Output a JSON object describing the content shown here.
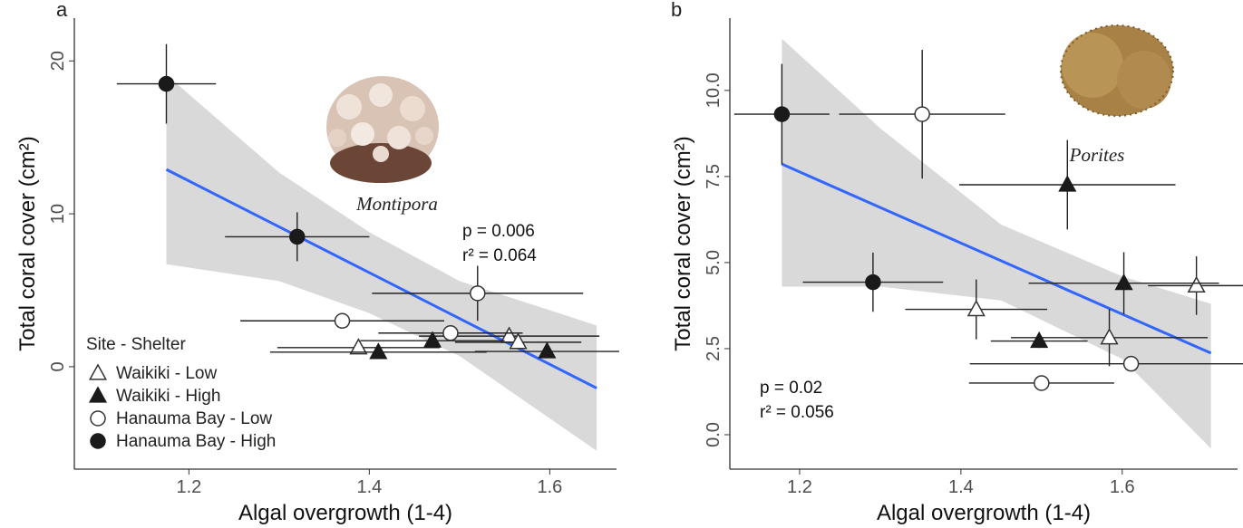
{
  "chart_data": [
    {
      "type": "scatter",
      "panel_label": "a",
      "x_label": "Algal overgrowth (1-4)",
      "y_label": "Total coral cover (cm²)",
      "xlim": [
        1.073,
        1.674
      ],
      "ylim": [
        -6.7,
        22.8
      ],
      "xticks": [
        1.2,
        1.4,
        1.6
      ],
      "yticks": [
        0,
        10,
        20
      ],
      "annotations": [
        "p = 0.006",
        "r² = 0.064"
      ],
      "image_label": "Montipora",
      "legend": true,
      "legend_title": "Site - Shelter",
      "legend_position": "lower left",
      "fit": {
        "color": "#3366ff",
        "band_color": "#d9d9d9",
        "x": [
          1.175,
          1.3,
          1.4,
          1.5,
          1.652
        ],
        "values": [
          12.9,
          9.15,
          6.15,
          3.15,
          -1.4
        ],
        "lower": [
          6.7,
          5.6,
          3.5,
          0.7,
          -5.5
        ],
        "upper": [
          19.1,
          12.7,
          8.8,
          5.6,
          2.7
        ]
      },
      "series": [
        {
          "name": "Waikiki - Low",
          "marker": "triangle",
          "filled": false,
          "color": "#333333",
          "x": [
            1.388,
            1.555,
            1.565
          ],
          "values": [
            1.25,
            2.0,
            1.6
          ],
          "x_err": [
            0.09,
            0.1,
            0.07
          ],
          "y_err": [
            0.2,
            0.3,
            0.3
          ]
        },
        {
          "name": "Waikiki - High",
          "marker": "triangle",
          "filled": true,
          "color": "#1a1a1a",
          "x": [
            1.41,
            1.47,
            1.597
          ],
          "values": [
            0.95,
            1.7,
            1.0
          ],
          "x_err": [
            0.12,
            0.08,
            0.08
          ],
          "y_err": [
            0.2,
            0.2,
            0.2
          ]
        },
        {
          "name": "Hanauma Bay - Low",
          "marker": "circle",
          "filled": false,
          "color": "#333333",
          "x": [
            1.37,
            1.49,
            1.52
          ],
          "values": [
            3.0,
            2.2,
            4.8
          ],
          "x_err": [
            0.113,
            0.08,
            0.117
          ],
          "y_err": [
            0.3,
            0.3,
            1.8
          ]
        },
        {
          "name": "Hanauma Bay - High",
          "marker": "circle",
          "filled": true,
          "color": "#1a1a1a",
          "x": [
            1.175,
            1.32
          ],
          "values": [
            18.5,
            8.5
          ],
          "x_err": [
            0.055,
            0.08
          ],
          "y_err": [
            2.6,
            1.6
          ]
        }
      ]
    },
    {
      "type": "scatter",
      "panel_label": "b",
      "x_label": "Algal overgrowth (1-4)",
      "y_label": "Total coral cover (cm²)",
      "xlim": [
        1.1135,
        1.743
      ],
      "ylim": [
        -1.0,
        12.1
      ],
      "xticks": [
        1.2,
        1.4,
        1.6
      ],
      "yticks": [
        {
          "value": 0,
          "label": "0.0"
        },
        2.5,
        {
          "value": 5,
          "label": "5.0"
        },
        7.5,
        {
          "value": 10,
          "label": "10.0"
        }
      ],
      "annotations": [
        "p = 0.02",
        "r² = 0.056"
      ],
      "image_label": "Porites",
      "legend": false,
      "fit": {
        "color": "#3366ff",
        "band_color": "#d9d9d9",
        "x": [
          1.178,
          1.3,
          1.45,
          1.6,
          1.71
        ],
        "values": [
          7.86,
          6.6,
          5.05,
          3.5,
          2.37
        ],
        "lower": [
          4.3,
          4.3,
          3.9,
          2.2,
          -0.4
        ],
        "upper": [
          11.5,
          8.9,
          6.1,
          4.6,
          3.8
        ]
      },
      "series": [
        {
          "marker": "triangle",
          "filled": false,
          "color": "#333333",
          "x": [
            1.419,
            1.584,
            1.692
          ],
          "values": [
            3.64,
            2.82,
            4.33
          ],
          "x_err": [
            0.088,
            0.122,
            0.06
          ],
          "y_err": [
            0.87,
            0.83,
            0.85
          ]
        },
        {
          "marker": "triangle",
          "filled": true,
          "color": "#1a1a1a",
          "x": [
            1.497,
            1.532,
            1.602
          ],
          "values": [
            2.72,
            7.26,
            4.4
          ],
          "x_err": [
            0.06,
            0.134,
            0.118
          ],
          "y_err": [
            0.2,
            1.3,
            0.9
          ]
        },
        {
          "marker": "circle",
          "filled": false,
          "color": "#333333",
          "x": [
            1.352,
            1.5,
            1.611
          ],
          "values": [
            9.31,
            1.5,
            2.06
          ],
          "x_err": [
            0.103,
            0.09,
            0.2
          ],
          "y_err": [
            1.87,
            0.2,
            0.2
          ]
        },
        {
          "marker": "circle",
          "filled": true,
          "color": "#1a1a1a",
          "x": [
            1.178,
            1.291
          ],
          "values": [
            9.31,
            4.43
          ],
          "x_err": [
            0.059,
            0.087
          ],
          "y_err": [
            1.46,
            0.86
          ]
        }
      ]
    }
  ]
}
